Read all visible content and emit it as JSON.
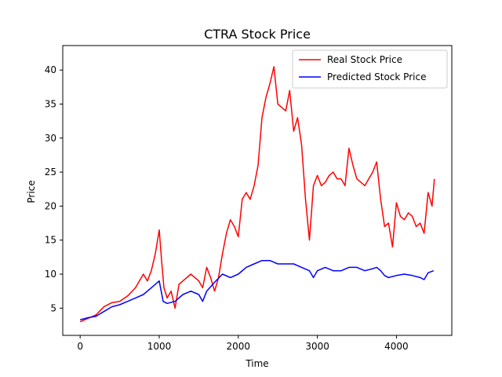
{
  "chart_data": {
    "type": "line",
    "title": "CTRA Stock Price",
    "xlabel": "Time",
    "ylabel": "Price",
    "xlim": [
      -220,
      4700
    ],
    "ylim": [
      1.0,
      43.6
    ],
    "x_ticks": [
      0,
      1000,
      2000,
      3000,
      4000
    ],
    "y_ticks": [
      5,
      10,
      15,
      20,
      25,
      30,
      35,
      40
    ],
    "grid": false,
    "legend_position": "top-right",
    "series": [
      {
        "name": "Real Stock Price",
        "color": "#ff0000",
        "x": [
          0,
          100,
          200,
          250,
          300,
          400,
          500,
          600,
          700,
          800,
          850,
          900,
          950,
          1000,
          1030,
          1060,
          1100,
          1150,
          1200,
          1250,
          1300,
          1400,
          1500,
          1550,
          1600,
          1650,
          1700,
          1750,
          1800,
          1850,
          1900,
          1950,
          2000,
          2050,
          2100,
          2150,
          2200,
          2250,
          2300,
          2350,
          2400,
          2450,
          2500,
          2550,
          2600,
          2650,
          2700,
          2750,
          2800,
          2850,
          2900,
          2950,
          3000,
          3050,
          3100,
          3150,
          3200,
          3250,
          3300,
          3350,
          3400,
          3450,
          3500,
          3550,
          3600,
          3650,
          3700,
          3750,
          3800,
          3850,
          3900,
          3950,
          4000,
          4050,
          4100,
          4150,
          4200,
          4250,
          4300,
          4350,
          4400,
          4450,
          4480
        ],
        "y": [
          3.0,
          3.5,
          4.0,
          4.6,
          5.2,
          5.8,
          6.0,
          6.8,
          8.0,
          10.0,
          9.0,
          10.5,
          13.0,
          16.5,
          12.0,
          8.0,
          6.5,
          7.5,
          5.0,
          8.5,
          9.0,
          10.0,
          9.0,
          8.0,
          11.0,
          9.5,
          7.5,
          9.5,
          13.0,
          16.0,
          18.0,
          17.0,
          15.5,
          21.0,
          22.0,
          21.0,
          23.0,
          26.0,
          33.0,
          36.0,
          38.0,
          40.5,
          35.0,
          34.5,
          34.0,
          37.0,
          31.0,
          33.0,
          29.0,
          21.0,
          15.0,
          23.0,
          24.5,
          23.0,
          23.5,
          24.5,
          25.0,
          24.0,
          24.0,
          23.0,
          28.5,
          26.0,
          24.0,
          23.5,
          23.0,
          24.0,
          25.0,
          26.5,
          21.0,
          17.0,
          17.5,
          14.0,
          20.5,
          18.5,
          18.0,
          19.0,
          18.5,
          17.0,
          17.5,
          16.0,
          22.0,
          20.0,
          24.0
        ]
      },
      {
        "name": "Predicted Stock Price",
        "color": "#0000ff",
        "x": [
          0,
          100,
          200,
          300,
          400,
          500,
          600,
          700,
          800,
          900,
          1000,
          1050,
          1100,
          1200,
          1300,
          1400,
          1500,
          1550,
          1600,
          1700,
          1800,
          1900,
          2000,
          2100,
          2200,
          2300,
          2400,
          2500,
          2600,
          2700,
          2800,
          2900,
          2950,
          3000,
          3100,
          3200,
          3300,
          3400,
          3500,
          3600,
          3700,
          3750,
          3800,
          3850,
          3900,
          4000,
          4100,
          4200,
          4300,
          4350,
          4400,
          4470
        ],
        "y": [
          3.3,
          3.6,
          3.8,
          4.5,
          5.2,
          5.5,
          6.0,
          6.5,
          7.0,
          8.0,
          9.0,
          6.0,
          5.7,
          6.0,
          7.0,
          7.5,
          7.0,
          6.0,
          7.5,
          8.8,
          10.0,
          9.5,
          10.0,
          11.0,
          11.5,
          12.0,
          12.0,
          11.5,
          11.5,
          11.5,
          11.0,
          10.5,
          9.5,
          10.5,
          11.0,
          10.5,
          10.5,
          11.0,
          11.0,
          10.5,
          10.8,
          11.0,
          10.5,
          9.8,
          9.5,
          9.8,
          10.0,
          9.8,
          9.5,
          9.2,
          10.2,
          10.5
        ]
      }
    ]
  }
}
